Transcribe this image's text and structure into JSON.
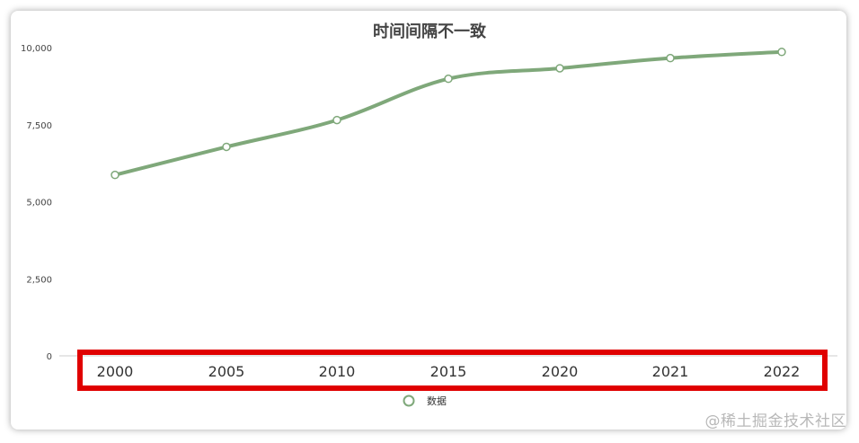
{
  "watermark": "@稀土掘金技术社区",
  "chart_data": {
    "type": "line",
    "title": "时间间隔不一致",
    "xlabel": "",
    "ylabel": "",
    "categories": [
      "2000",
      "2005",
      "2010",
      "2015",
      "2020",
      "2021",
      "2022"
    ],
    "series": [
      {
        "name": "数据",
        "values": [
          5870,
          6780,
          7650,
          8990,
          9330,
          9660,
          9860
        ],
        "color": "#7fa87a"
      }
    ],
    "ylim": [
      0,
      10000
    ],
    "yticks": [
      0,
      2500,
      5000,
      7500,
      10000
    ],
    "ytick_labels": [
      "0",
      "2,500",
      "5,000",
      "7,500",
      "10,000"
    ],
    "smooth": true,
    "grid": false,
    "legend": "bottom-center",
    "highlight": {
      "target": "x-axis-labels",
      "color": "#e00000"
    }
  }
}
